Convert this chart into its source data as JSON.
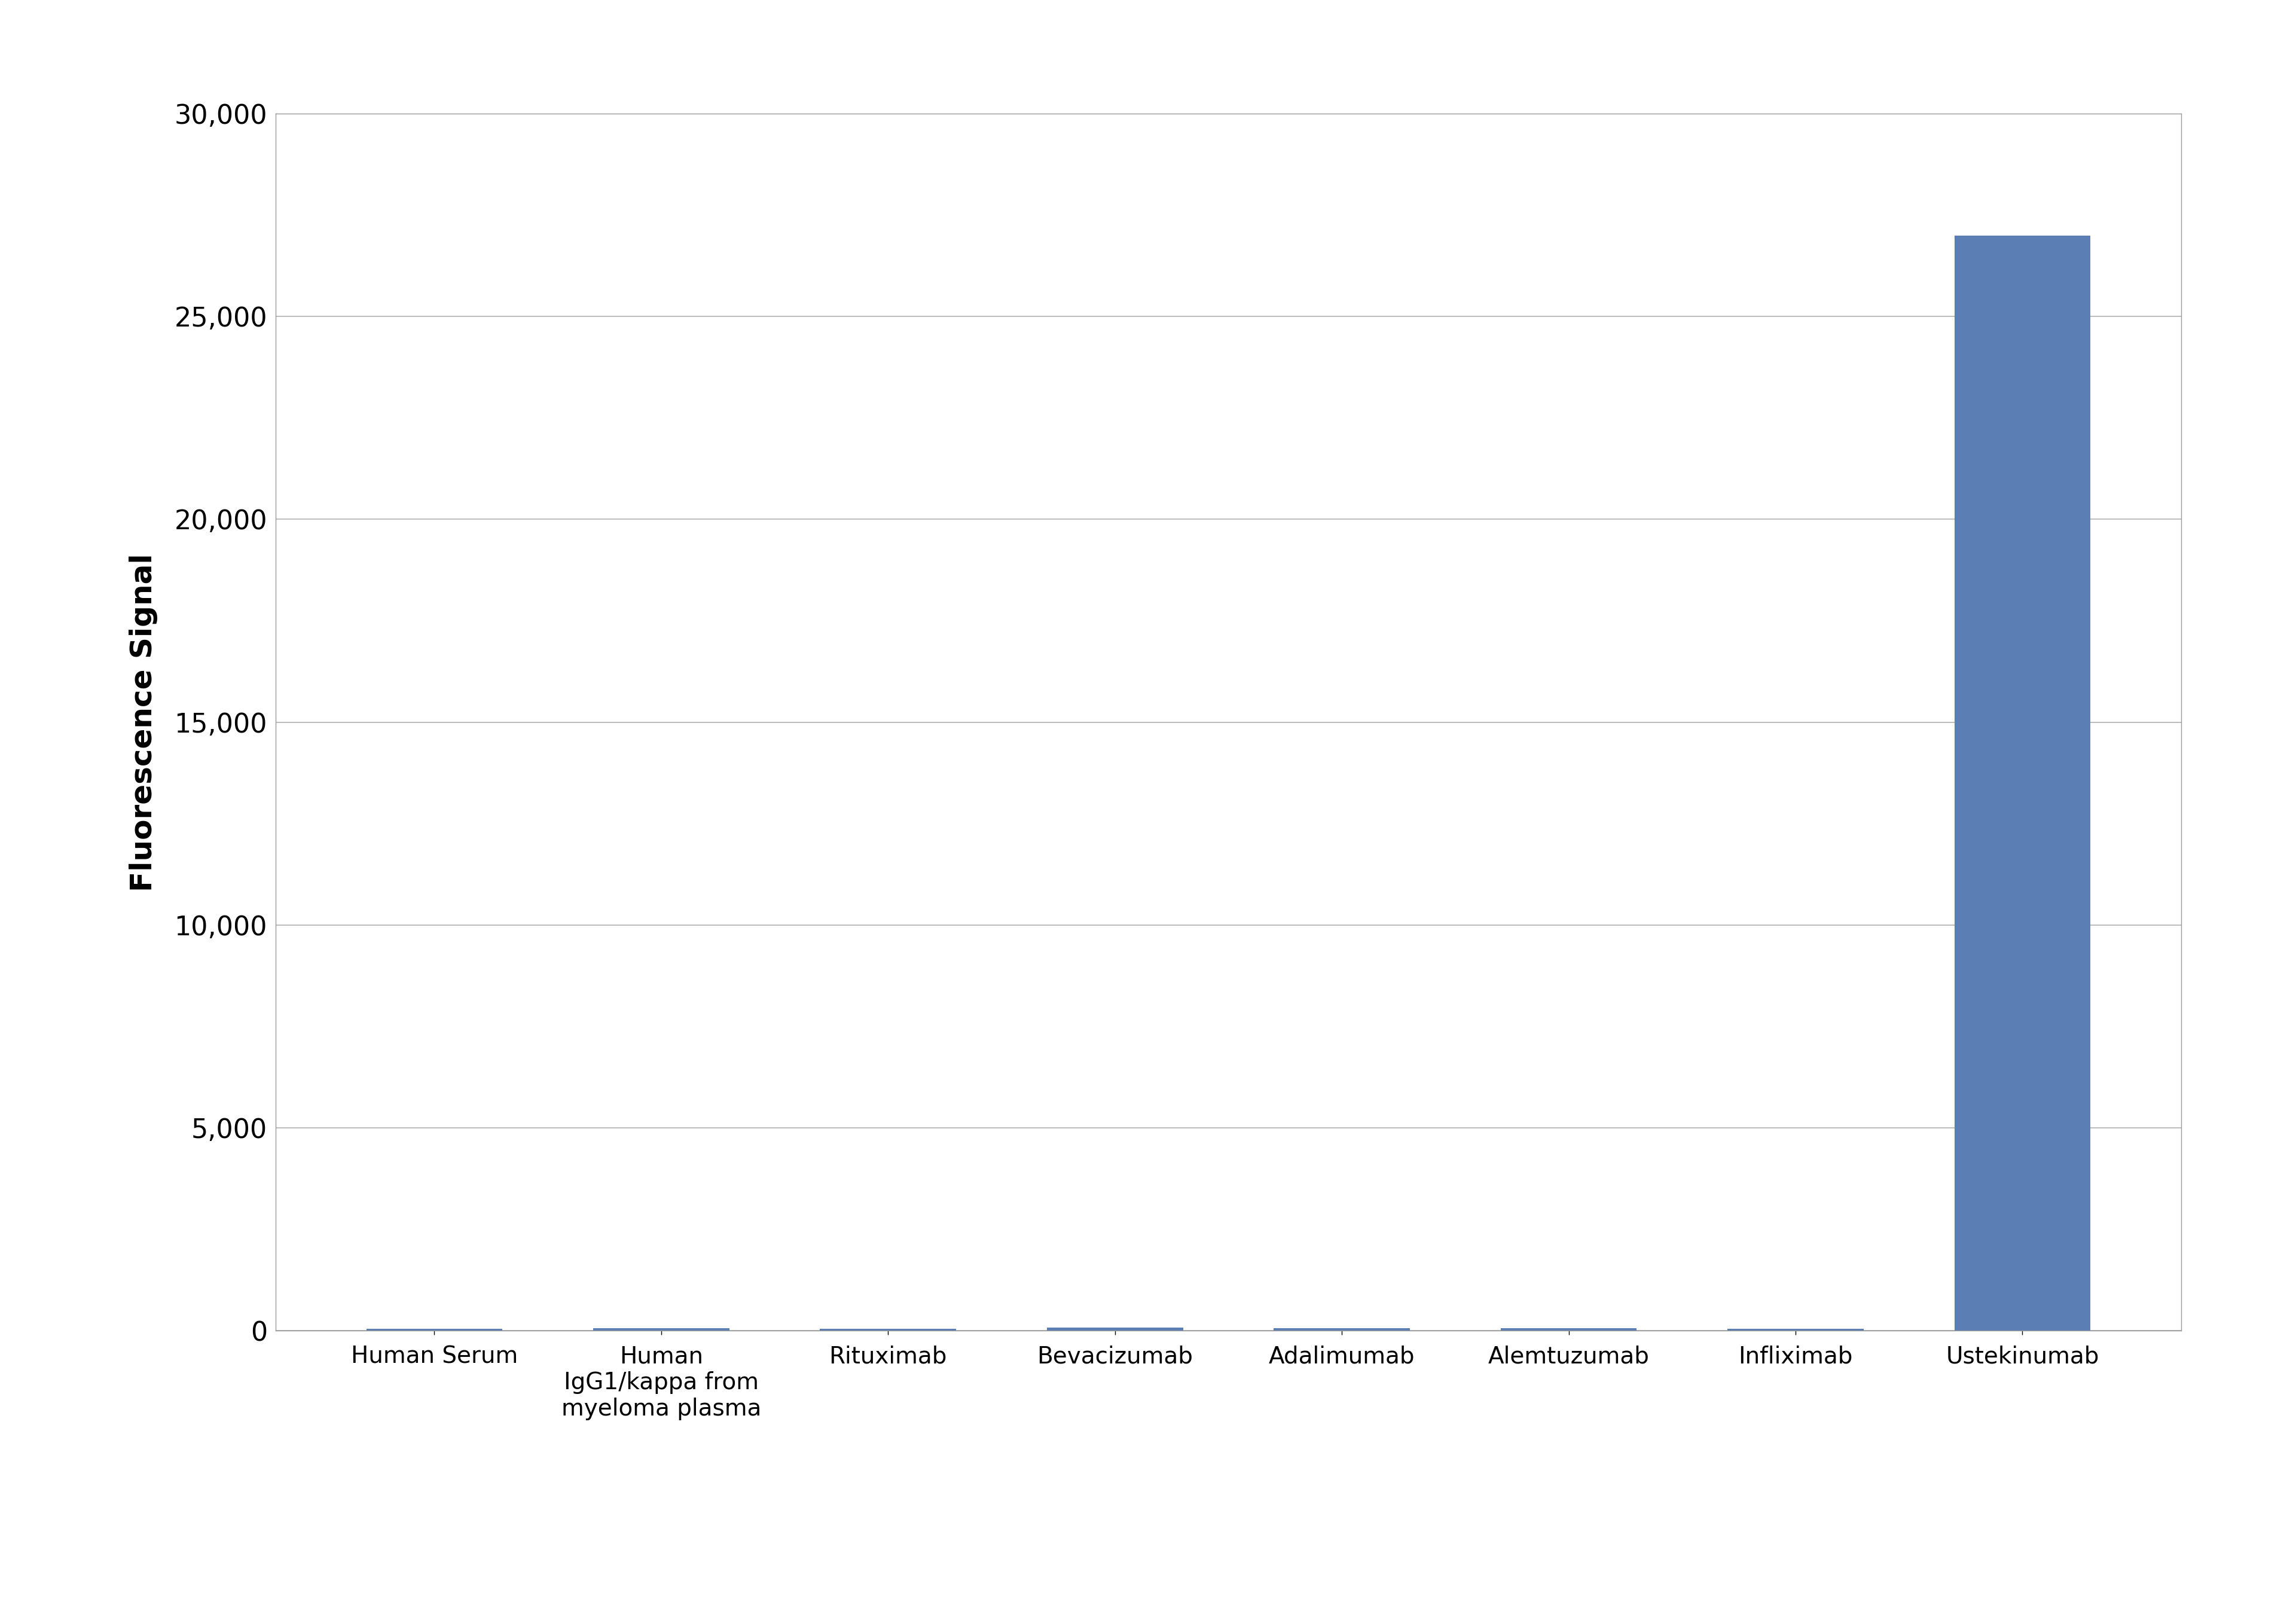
{
  "categories": [
    "Human Serum",
    "Human\nIgG1/kappa from\nmyeloma plasma",
    "Rituximab",
    "Bevacizumab",
    "Adalimumab",
    "Alemtuzumab",
    "Infliximab",
    "Ustekinumab"
  ],
  "values": [
    50,
    60,
    50,
    80,
    60,
    70,
    50,
    27000
  ],
  "bar_color": "#5b7fb5",
  "ylabel": "Fluorescence Signal",
  "ylim": [
    0,
    30000
  ],
  "yticks": [
    0,
    5000,
    10000,
    15000,
    20000,
    25000,
    30000
  ],
  "background_color": "#ffffff",
  "plot_bg_color": "#ffffff",
  "grid_color": "#b0b0b0",
  "bar_width": 0.6,
  "axis_label_fontsize": 36,
  "tick_fontsize": 32,
  "xtick_fontsize": 28
}
